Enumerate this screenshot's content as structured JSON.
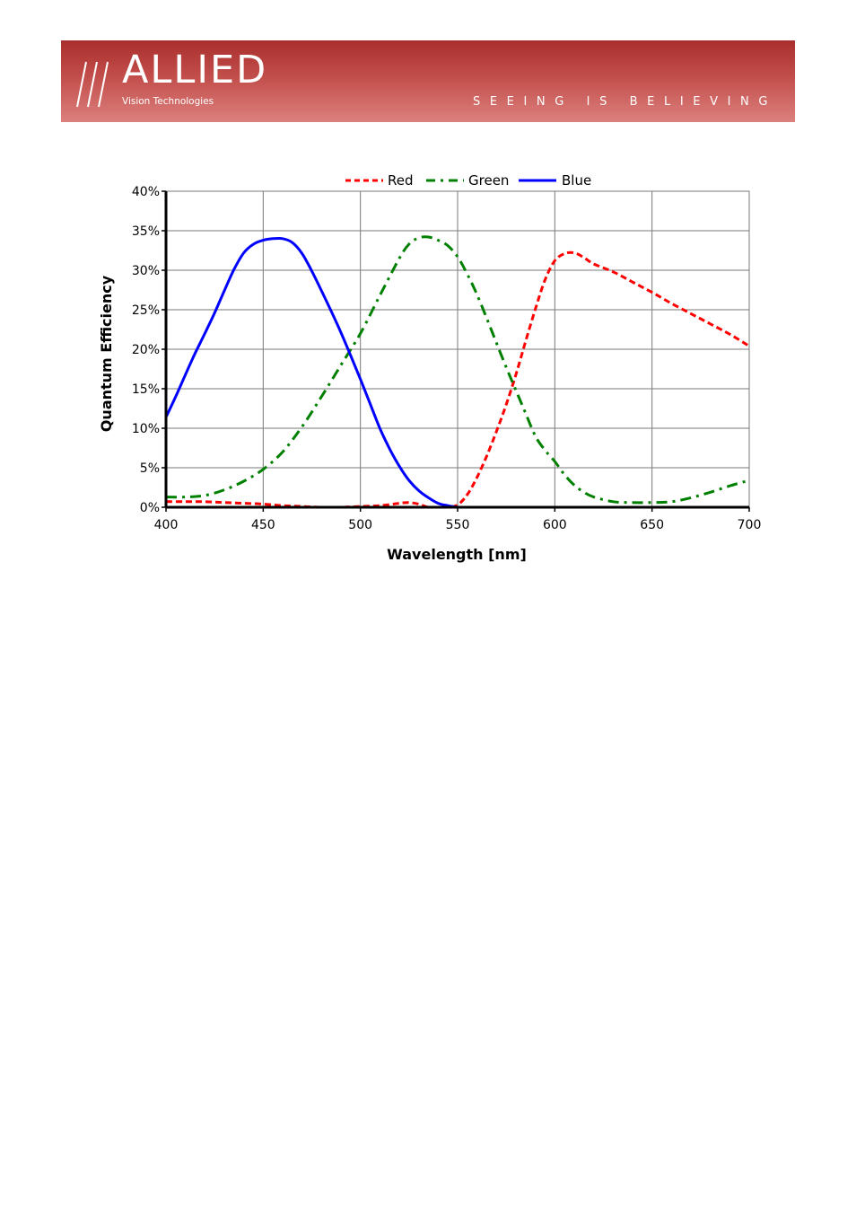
{
  "header": {
    "logo_word": "///ALLIED",
    "logo_main": "ALLIED",
    "logo_sub": "Vision Technologies",
    "tagline": "SEEING IS BELIEVING",
    "banner_colors": [
      "#a92f2d",
      "#dc807d"
    ]
  },
  "chart_data": {
    "type": "line",
    "title": "",
    "xlabel": "Wavelength [nm]",
    "ylabel": "Quantum Efficiency",
    "xlim": [
      400,
      700
    ],
    "ylim": [
      0,
      40
    ],
    "x_ticks": [
      "400",
      "450",
      "500",
      "550",
      "600",
      "650",
      "700"
    ],
    "y_ticks": [
      "0%",
      "5%",
      "10%",
      "15%",
      "20%",
      "25%",
      "30%",
      "35%",
      "40%"
    ],
    "grid": true,
    "legend_position": "top",
    "series": [
      {
        "name": "Red",
        "color": "#ff0000",
        "style": "dashed",
        "x": [
          400,
          410,
          420,
          430,
          440,
          450,
          460,
          470,
          480,
          490,
          500,
          510,
          520,
          525,
          530,
          535,
          540,
          545,
          550,
          555,
          560,
          565,
          570,
          575,
          580,
          585,
          590,
          595,
          600,
          605,
          610,
          615,
          620,
          630,
          640,
          650,
          660,
          670,
          680,
          690,
          700
        ],
        "values": [
          0.7,
          0.7,
          0.7,
          0.6,
          0.5,
          0.4,
          0.2,
          0.1,
          0.0,
          0.0,
          0.1,
          0.2,
          0.5,
          0.6,
          0.4,
          0.0,
          0.0,
          0.0,
          0.3,
          1.6,
          3.8,
          6.5,
          9.6,
          13.0,
          16.8,
          21.0,
          25.1,
          28.8,
          31.2,
          32.1,
          32.2,
          31.6,
          30.8,
          29.8,
          28.5,
          27.2,
          25.8,
          24.5,
          23.2,
          21.9,
          20.4
        ]
      },
      {
        "name": "Green",
        "color": "#008000",
        "style": "dash-dot",
        "x": [
          400,
          410,
          420,
          430,
          440,
          450,
          460,
          470,
          480,
          490,
          500,
          510,
          520,
          525,
          530,
          535,
          540,
          545,
          550,
          555,
          560,
          565,
          570,
          575,
          580,
          585,
          590,
          595,
          600,
          605,
          610,
          615,
          620,
          630,
          640,
          650,
          660,
          670,
          680,
          690,
          700
        ],
        "values": [
          1.3,
          1.3,
          1.5,
          2.2,
          3.3,
          4.8,
          7.0,
          10.2,
          14.0,
          18.0,
          22.0,
          26.8,
          31.5,
          33.3,
          34.1,
          34.2,
          33.8,
          33.1,
          31.7,
          29.5,
          26.9,
          23.9,
          20.8,
          17.7,
          14.8,
          11.9,
          9.0,
          7.2,
          5.8,
          4.1,
          2.8,
          1.9,
          1.3,
          0.7,
          0.6,
          0.6,
          0.7,
          1.2,
          1.9,
          2.7,
          3.4
        ]
      },
      {
        "name": "Blue",
        "color": "#0000ff",
        "style": "solid",
        "x": [
          400,
          405,
          410,
          415,
          420,
          425,
          430,
          435,
          440,
          445,
          450,
          455,
          460,
          465,
          470,
          475,
          480,
          485,
          490,
          495,
          500,
          505,
          510,
          515,
          520,
          525,
          530,
          535,
          540,
          545,
          550,
          555,
          560,
          570,
          580,
          600,
          620,
          650,
          700
        ],
        "values": [
          11.4,
          14.0,
          16.8,
          19.5,
          22.0,
          24.6,
          27.4,
          30.1,
          32.2,
          33.3,
          33.8,
          34.0,
          34.0,
          33.5,
          32.1,
          29.9,
          27.4,
          24.8,
          22.1,
          19.2,
          16.2,
          13.1,
          10.0,
          7.4,
          5.2,
          3.4,
          2.1,
          1.2,
          0.5,
          0.2,
          0.0,
          0.0,
          0.0,
          0.0,
          0.0,
          0.0,
          0.0,
          0.0,
          0.0
        ]
      }
    ]
  }
}
